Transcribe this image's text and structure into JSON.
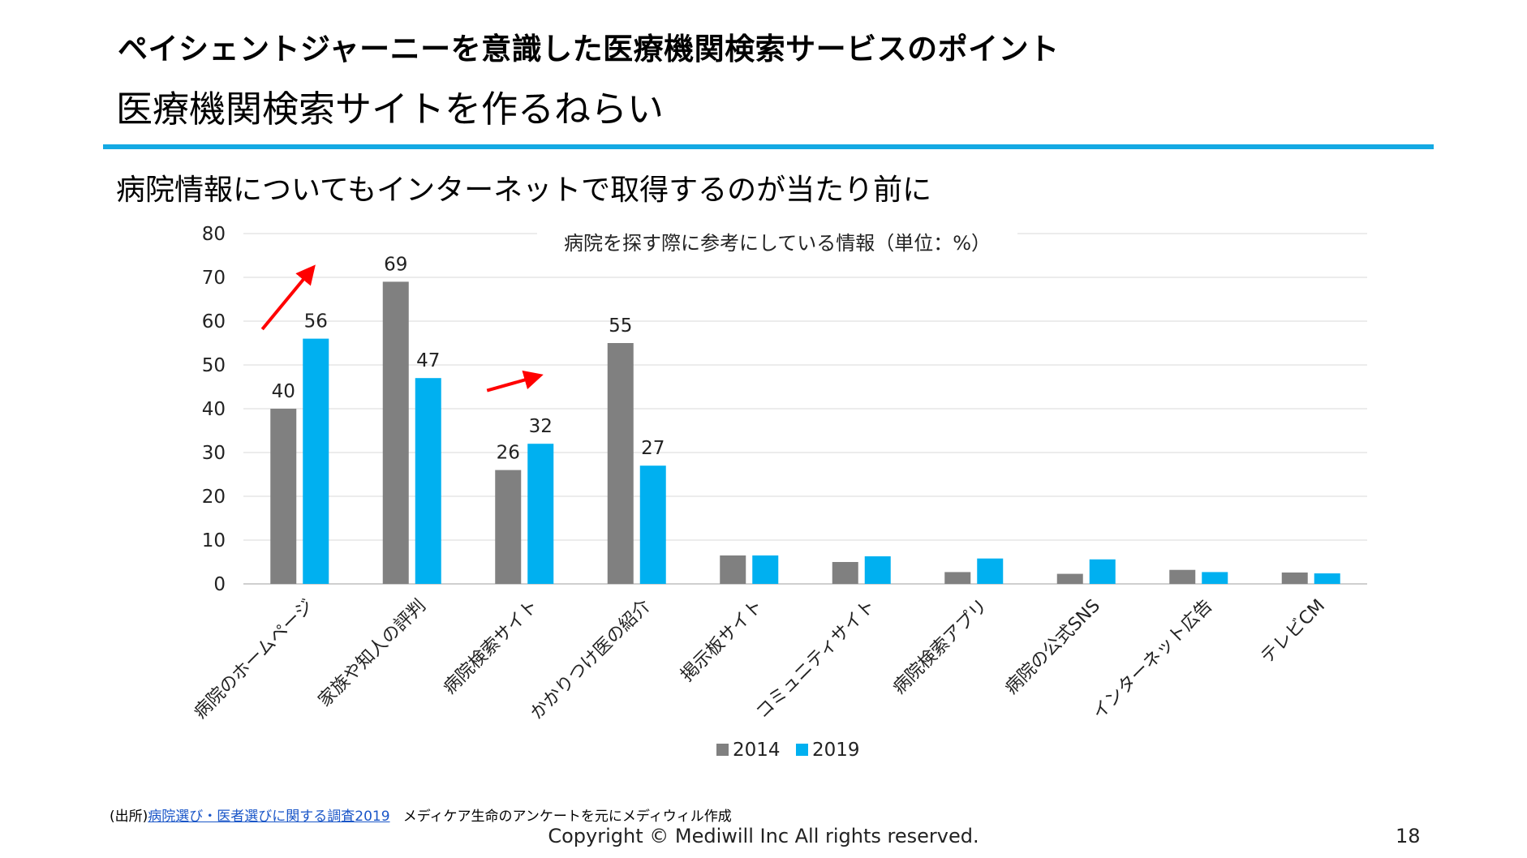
{
  "slide": {
    "heading": "ペイシェントジャーニーを意識した医療機関検索サービスのポイント",
    "subheading": "医療機関検索サイトを作るねらい",
    "lead": "病院情報についてもインターネットで取得するのが当たり前に",
    "source_prefix": "(出所)",
    "source_link": "病院選び・医者選びに関する調査2019",
    "source_note": "メディケア生命のアンケートを元にメディウィル作成",
    "copyright": "Copyright © Mediwill Inc All rights reserved.",
    "page_number": "18"
  },
  "chart_data": {
    "type": "bar",
    "title": "病院を探す際に参考にしている情報（単位：%）",
    "categories": [
      "病院のホームページ",
      "家族や知人の評判",
      "病院検索サイト",
      "かかりつけ医の紹介",
      "掲示板サイト",
      "コミュニティサイト",
      "病院検索アプリ",
      "病院の公式SNS",
      "インターネット広告",
      "テレビCM"
    ],
    "series": [
      {
        "name": "2014",
        "color": "#808080",
        "values": [
          40,
          69,
          26,
          55,
          6.5,
          5,
          2.7,
          2.3,
          3.2,
          2.6
        ],
        "labels": [
          "40",
          "69",
          "26",
          "55",
          "",
          "",
          "",
          "",
          "",
          ""
        ]
      },
      {
        "name": "2019",
        "color": "#00b0f0",
        "values": [
          56,
          47,
          32,
          27,
          6.5,
          6.3,
          5.8,
          5.6,
          2.7,
          2.4
        ],
        "labels": [
          "56",
          "47",
          "32",
          "27",
          "",
          "",
          "",
          "",
          "",
          ""
        ]
      }
    ],
    "ylim": [
      0,
      80
    ],
    "yticks": [
      0,
      10,
      20,
      30,
      40,
      50,
      60,
      70,
      80
    ],
    "grid": true,
    "legend": "bottom",
    "arrow_color": "#ff0000",
    "arrow_categories": [
      "病院のホームページ",
      "病院検索サイト"
    ]
  }
}
